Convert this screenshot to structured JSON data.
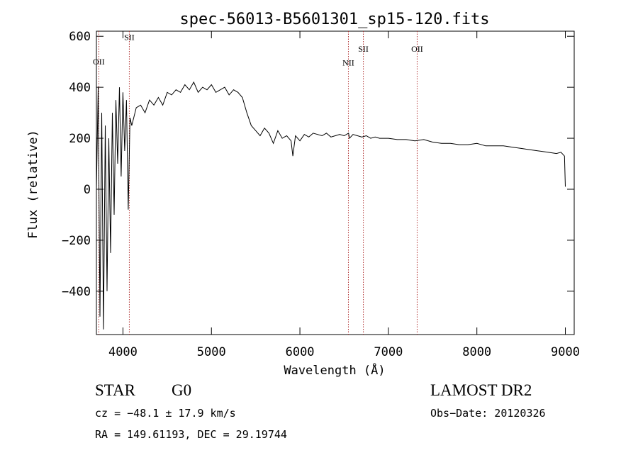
{
  "chart_data": {
    "type": "line",
    "title": "spec-56013-B5601301_sp15-120.fits",
    "xlabel": "Wavelength (Å)",
    "ylabel": "Flux (relative)",
    "xlim": [
      3700,
      9100
    ],
    "ylim": [
      -570,
      620
    ],
    "xticks": [
      4000,
      5000,
      6000,
      7000,
      8000,
      9000
    ],
    "yticks": [
      -400,
      -200,
      0,
      200,
      400,
      600
    ],
    "grid": false,
    "line_color": "#000000",
    "marker_color": "#b03030",
    "spectral_lines": [
      {
        "name": "OII",
        "wavelength": 3727,
        "label_flux": 490
      },
      {
        "name": "SII",
        "wavelength": 4072,
        "label_flux": 585
      },
      {
        "name": "NII",
        "wavelength": 6548,
        "label_flux": 485
      },
      {
        "name": "SII",
        "wavelength": 6717,
        "label_flux": 540
      },
      {
        "name": "OII",
        "wavelength": 7325,
        "label_flux": 540
      }
    ],
    "series": [
      {
        "wavelength": [
          3700,
          3720,
          3740,
          3760,
          3780,
          3800,
          3820,
          3840,
          3860,
          3880,
          3900,
          3920,
          3940,
          3960,
          3980,
          4000,
          4020,
          4040,
          4060,
          4080,
          4100,
          4150,
          4200,
          4250,
          4300,
          4350,
          4400,
          4450,
          4500,
          4550,
          4600,
          4650,
          4700,
          4750,
          4800,
          4850,
          4900,
          4950,
          5000,
          5050,
          5100,
          5150,
          5200,
          5250,
          5300,
          5350,
          5400,
          5450,
          5500,
          5550,
          5600,
          5650,
          5700,
          5750,
          5800,
          5850,
          5900,
          5920,
          5950,
          6000,
          6050,
          6100,
          6150,
          6200,
          6250,
          6300,
          6350,
          6400,
          6450,
          6500,
          6550,
          6560,
          6600,
          6650,
          6700,
          6750,
          6800,
          6850,
          6900,
          6950,
          7000,
          7100,
          7200,
          7300,
          7400,
          7500,
          7600,
          7700,
          7800,
          7900,
          8000,
          8100,
          8200,
          8300,
          8400,
          8500,
          8600,
          8700,
          8800,
          8900,
          8950,
          8990,
          9000
        ],
        "flux": [
          0,
          400,
          -500,
          300,
          -550,
          250,
          -400,
          200,
          -250,
          300,
          -100,
          350,
          100,
          400,
          50,
          380,
          150,
          350,
          -80,
          280,
          250,
          320,
          330,
          300,
          350,
          330,
          360,
          330,
          380,
          370,
          390,
          380,
          410,
          390,
          420,
          380,
          400,
          390,
          410,
          380,
          390,
          400,
          370,
          390,
          380,
          360,
          300,
          250,
          230,
          210,
          240,
          220,
          180,
          230,
          200,
          210,
          190,
          130,
          210,
          190,
          215,
          205,
          220,
          215,
          210,
          220,
          205,
          210,
          215,
          210,
          220,
          200,
          215,
          210,
          205,
          210,
          200,
          205,
          200,
          200,
          200,
          195,
          195,
          190,
          195,
          185,
          180,
          180,
          175,
          175,
          180,
          170,
          170,
          170,
          165,
          160,
          155,
          150,
          145,
          140,
          145,
          130,
          10
        ]
      }
    ]
  },
  "footer": {
    "object_class": "STAR",
    "subclass": "G0",
    "survey": "LAMOST DR2",
    "cz": "cz = −48.1 ± 17.9 km/s",
    "obs_date": "Obs−Date: 20120326",
    "coords": "RA = 149.61193, DEC =  29.19744"
  }
}
